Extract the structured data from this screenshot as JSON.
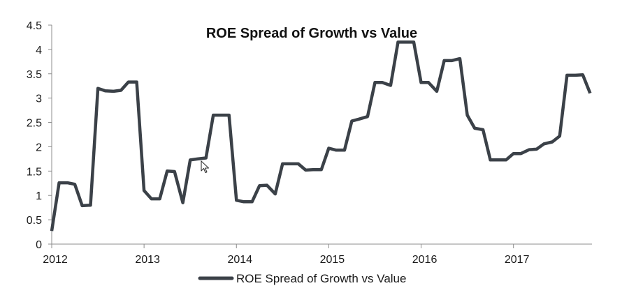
{
  "chart_data": {
    "type": "line",
    "title": "ROE Spread of Growth vs Value",
    "xlabel": "",
    "ylabel": "",
    "ylim": [
      0,
      4.5
    ],
    "yticks": [
      "0",
      "0.5",
      "1",
      "1.5",
      "2",
      "2.5",
      "3",
      "3.5",
      "4",
      "4.5"
    ],
    "xlim": [
      2012,
      2017.85
    ],
    "xticks": [
      "2012",
      "2013",
      "2014",
      "2015",
      "2016",
      "2017"
    ],
    "grid": false,
    "legend": "bottom-center",
    "colors": {
      "line": "#3b4148",
      "axis": "#8c8c8c"
    },
    "series": [
      {
        "name": "ROE Spread of Growth vs Value",
        "x": [
          2012.0,
          2012.08,
          2012.17,
          2012.25,
          2012.33,
          2012.42,
          2012.5,
          2012.58,
          2012.67,
          2012.75,
          2012.83,
          2012.92,
          2013.0,
          2013.08,
          2013.17,
          2013.25,
          2013.33,
          2013.42,
          2013.5,
          2013.58,
          2013.67,
          2013.75,
          2013.83,
          2013.92,
          2014.0,
          2014.08,
          2014.17,
          2014.25,
          2014.33,
          2014.42,
          2014.5,
          2014.58,
          2014.67,
          2014.75,
          2014.83,
          2014.92,
          2015.0,
          2015.08,
          2015.17,
          2015.25,
          2015.33,
          2015.42,
          2015.5,
          2015.58,
          2015.67,
          2015.75,
          2015.83,
          2015.92,
          2016.0,
          2016.08,
          2016.17,
          2016.25,
          2016.33,
          2016.42,
          2016.5,
          2016.58,
          2016.67,
          2016.75,
          2016.83,
          2016.92,
          2017.0,
          2017.08,
          2017.17,
          2017.25,
          2017.33,
          2017.42,
          2017.5,
          2017.58,
          2017.67,
          2017.75,
          2017.83
        ],
        "values": [
          0.27,
          1.26,
          1.26,
          1.23,
          0.79,
          0.8,
          3.2,
          3.15,
          3.14,
          3.16,
          3.33,
          3.33,
          1.1,
          0.93,
          0.93,
          1.5,
          1.49,
          0.85,
          1.73,
          1.75,
          1.77,
          2.65,
          2.65,
          2.65,
          0.9,
          0.87,
          0.87,
          1.2,
          1.21,
          1.03,
          1.65,
          1.65,
          1.65,
          1.52,
          1.53,
          1.53,
          1.97,
          1.93,
          1.93,
          2.53,
          2.57,
          2.62,
          3.32,
          3.32,
          3.26,
          4.15,
          4.15,
          4.15,
          3.32,
          3.32,
          3.14,
          3.77,
          3.77,
          3.81,
          2.65,
          2.38,
          2.35,
          1.73,
          1.73,
          1.73,
          1.86,
          1.86,
          1.94,
          1.95,
          2.06,
          2.1,
          2.22,
          3.47,
          3.47,
          3.48,
          3.1
        ]
      }
    ]
  }
}
